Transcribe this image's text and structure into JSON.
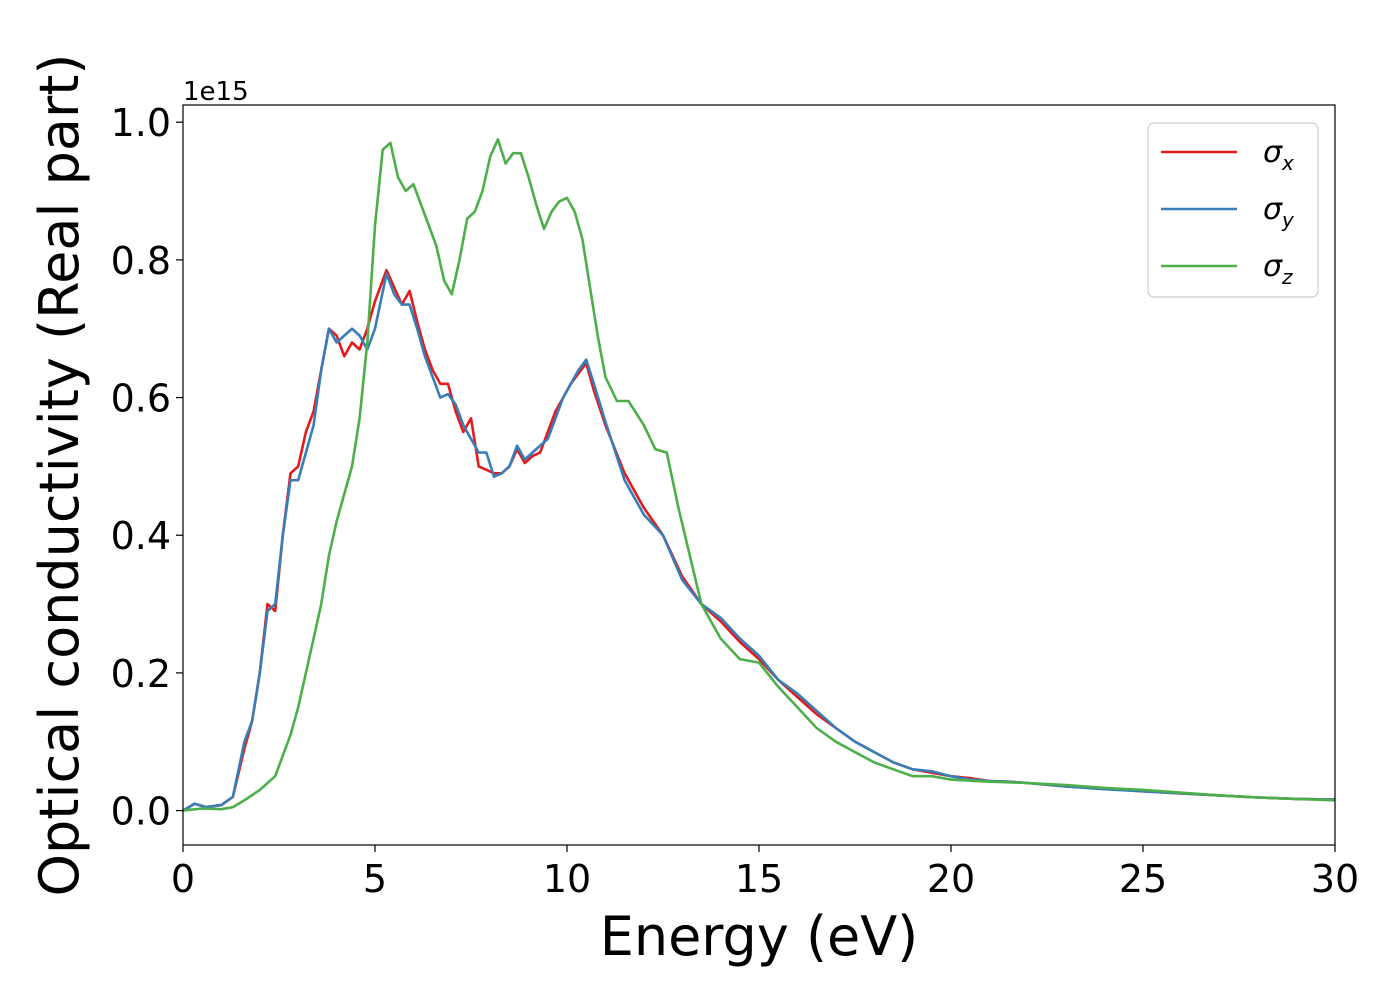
{
  "chart_data": {
    "type": "line",
    "xlabel": "Energy (eV)",
    "ylabel": "Optical conductivity (Real part)",
    "y_offset_label": "1e15",
    "xlim": [
      0,
      30
    ],
    "ylim": [
      -0.05,
      1.025
    ],
    "x_ticks": [
      0,
      5,
      10,
      15,
      20,
      25,
      30
    ],
    "x_tick_labels": [
      "0",
      "5",
      "10",
      "15",
      "20",
      "25",
      "30"
    ],
    "y_ticks": [
      0.0,
      0.2,
      0.4,
      0.6,
      0.8,
      1.0
    ],
    "y_tick_labels": [
      "0.0",
      "0.2",
      "0.4",
      "0.6",
      "0.8",
      "1.0"
    ],
    "grid": false,
    "legend_position": "top-right",
    "series": [
      {
        "name": "σx",
        "legend_symbol": "σ",
        "legend_sub": "x",
        "color": "#e41a1c",
        "x": [
          0,
          0.3,
          0.6,
          1.0,
          1.3,
          1.6,
          1.8,
          2.0,
          2.2,
          2.4,
          2.6,
          2.8,
          3.0,
          3.2,
          3.4,
          3.6,
          3.8,
          4.0,
          4.2,
          4.4,
          4.6,
          4.8,
          5.0,
          5.3,
          5.5,
          5.7,
          5.9,
          6.1,
          6.3,
          6.5,
          6.7,
          6.9,
          7.1,
          7.3,
          7.5,
          7.7,
          7.9,
          8.1,
          8.3,
          8.5,
          8.7,
          8.9,
          9.1,
          9.3,
          9.5,
          9.7,
          9.9,
          10.1,
          10.3,
          10.5,
          10.7,
          11.0,
          11.5,
          12.0,
          12.5,
          13.0,
          13.5,
          14.0,
          14.5,
          15.0,
          15.5,
          16.0,
          16.5,
          17.0,
          17.5,
          18.0,
          18.5,
          19.0,
          19.5,
          20.0,
          20.5,
          21.0,
          21.5,
          22.0,
          23.0,
          24.0,
          25.0,
          26.0,
          27.0,
          28.0,
          29.0,
          30.0
        ],
        "y": [
          0.0,
          0.01,
          0.005,
          0.008,
          0.02,
          0.09,
          0.13,
          0.2,
          0.3,
          0.29,
          0.4,
          0.49,
          0.5,
          0.55,
          0.58,
          0.64,
          0.7,
          0.69,
          0.66,
          0.68,
          0.67,
          0.7,
          0.74,
          0.785,
          0.76,
          0.735,
          0.755,
          0.71,
          0.67,
          0.64,
          0.62,
          0.62,
          0.58,
          0.55,
          0.57,
          0.5,
          0.495,
          0.49,
          0.49,
          0.5,
          0.525,
          0.505,
          0.515,
          0.52,
          0.55,
          0.58,
          0.6,
          0.62,
          0.635,
          0.65,
          0.61,
          0.56,
          0.49,
          0.44,
          0.4,
          0.34,
          0.3,
          0.275,
          0.245,
          0.22,
          0.19,
          0.165,
          0.14,
          0.12,
          0.1,
          0.085,
          0.07,
          0.06,
          0.055,
          0.05,
          0.047,
          0.043,
          0.042,
          0.04,
          0.035,
          0.032,
          0.028,
          0.025,
          0.022,
          0.019,
          0.017,
          0.016
        ]
      },
      {
        "name": "σy",
        "legend_symbol": "σ",
        "legend_sub": "y",
        "color": "#377eb8",
        "x": [
          0,
          0.3,
          0.6,
          1.0,
          1.3,
          1.6,
          1.8,
          2.0,
          2.2,
          2.4,
          2.6,
          2.8,
          3.0,
          3.2,
          3.4,
          3.6,
          3.8,
          4.0,
          4.2,
          4.4,
          4.6,
          4.8,
          5.0,
          5.3,
          5.5,
          5.7,
          5.9,
          6.1,
          6.3,
          6.5,
          6.7,
          6.9,
          7.1,
          7.3,
          7.5,
          7.7,
          7.9,
          8.1,
          8.3,
          8.5,
          8.7,
          8.9,
          9.1,
          9.3,
          9.5,
          9.7,
          9.9,
          10.1,
          10.3,
          10.5,
          10.7,
          11.0,
          11.5,
          12.0,
          12.5,
          13.0,
          13.5,
          14.0,
          14.5,
          15.0,
          15.5,
          16.0,
          16.5,
          17.0,
          17.5,
          18.0,
          18.5,
          19.0,
          19.5,
          20.0,
          20.5,
          21.0,
          21.5,
          22.0,
          23.0,
          24.0,
          25.0,
          26.0,
          27.0,
          28.0,
          29.0,
          30.0
        ],
        "y": [
          0.0,
          0.01,
          0.005,
          0.008,
          0.02,
          0.1,
          0.13,
          0.2,
          0.29,
          0.3,
          0.4,
          0.48,
          0.48,
          0.52,
          0.56,
          0.64,
          0.7,
          0.68,
          0.69,
          0.7,
          0.69,
          0.67,
          0.7,
          0.78,
          0.75,
          0.735,
          0.735,
          0.7,
          0.66,
          0.63,
          0.6,
          0.605,
          0.59,
          0.56,
          0.54,
          0.52,
          0.52,
          0.485,
          0.49,
          0.5,
          0.53,
          0.51,
          0.52,
          0.53,
          0.54,
          0.57,
          0.6,
          0.62,
          0.64,
          0.655,
          0.62,
          0.565,
          0.48,
          0.43,
          0.4,
          0.335,
          0.3,
          0.28,
          0.25,
          0.225,
          0.19,
          0.17,
          0.145,
          0.12,
          0.1,
          0.085,
          0.07,
          0.06,
          0.057,
          0.05,
          0.045,
          0.043,
          0.042,
          0.04,
          0.035,
          0.031,
          0.028,
          0.025,
          0.022,
          0.019,
          0.017,
          0.016
        ]
      },
      {
        "name": "σz",
        "legend_symbol": "σ",
        "legend_sub": "z",
        "color": "#4daf4a",
        "x": [
          0,
          0.5,
          1.0,
          1.3,
          1.6,
          2.0,
          2.4,
          2.8,
          3.0,
          3.2,
          3.4,
          3.6,
          3.8,
          4.0,
          4.2,
          4.4,
          4.6,
          4.8,
          5.0,
          5.2,
          5.4,
          5.6,
          5.8,
          6.0,
          6.2,
          6.4,
          6.6,
          6.8,
          7.0,
          7.2,
          7.4,
          7.6,
          7.8,
          8.0,
          8.2,
          8.4,
          8.6,
          8.8,
          9.0,
          9.2,
          9.4,
          9.6,
          9.8,
          10.0,
          10.2,
          10.4,
          10.6,
          10.8,
          11.0,
          11.3,
          11.6,
          12.0,
          12.3,
          12.6,
          12.9,
          13.2,
          13.5,
          14.0,
          14.5,
          15.0,
          15.5,
          16.0,
          16.5,
          17.0,
          17.5,
          18.0,
          18.5,
          19.0,
          19.5,
          20.0,
          21.0,
          22.0,
          23.0,
          24.0,
          25.0,
          26.0,
          27.0,
          28.0,
          29.0,
          30.0
        ],
        "y": [
          0.0,
          0.003,
          0.002,
          0.005,
          0.015,
          0.03,
          0.05,
          0.11,
          0.15,
          0.2,
          0.25,
          0.3,
          0.37,
          0.42,
          0.46,
          0.5,
          0.57,
          0.68,
          0.85,
          0.96,
          0.97,
          0.92,
          0.9,
          0.91,
          0.88,
          0.85,
          0.82,
          0.77,
          0.75,
          0.8,
          0.86,
          0.87,
          0.9,
          0.95,
          0.975,
          0.94,
          0.955,
          0.955,
          0.92,
          0.88,
          0.845,
          0.87,
          0.885,
          0.89,
          0.87,
          0.83,
          0.76,
          0.69,
          0.63,
          0.595,
          0.595,
          0.56,
          0.525,
          0.52,
          0.44,
          0.37,
          0.3,
          0.25,
          0.22,
          0.215,
          0.18,
          0.15,
          0.12,
          0.1,
          0.085,
          0.07,
          0.06,
          0.05,
          0.05,
          0.045,
          0.042,
          0.04,
          0.037,
          0.033,
          0.03,
          0.026,
          0.022,
          0.019,
          0.017,
          0.015
        ]
      }
    ]
  }
}
